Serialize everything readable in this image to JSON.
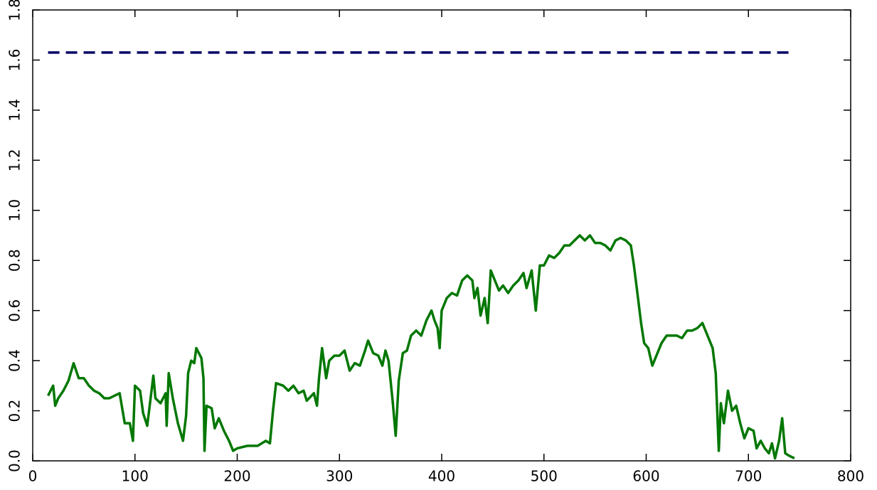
{
  "chart_data": {
    "type": "line",
    "xlim": [
      0,
      800
    ],
    "xticks": [
      0,
      100,
      200,
      300,
      400,
      500,
      600,
      700,
      800
    ],
    "ylim": [
      0,
      1.8
    ],
    "yticks": [
      {
        "value": 0,
        "label": "0.0"
      },
      {
        "value": 0.2,
        "label": "0.2"
      },
      {
        "value": 0.4,
        "label": "0.4"
      },
      {
        "value": 0.6,
        "label": "0.6"
      },
      {
        "value": 0.8,
        "label": "0.8"
      },
      {
        "value": 1.0,
        "label": "1.0"
      },
      {
        "value": 1.2,
        "label": "1.2"
      },
      {
        "value": 1.4,
        "label": "1.4"
      },
      {
        "value": 1.6,
        "label": "1.6"
      },
      {
        "value": 1.8,
        "label": "1.8"
      }
    ],
    "series": [
      {
        "color": "#007700",
        "dash": false,
        "x": [
          15,
          20,
          22,
          25,
          30,
          35,
          40,
          45,
          50,
          55,
          60,
          65,
          70,
          75,
          80,
          85,
          90,
          95,
          98,
          100,
          105,
          108,
          112,
          118,
          120,
          125,
          130,
          131,
          133,
          137,
          142,
          147,
          150,
          152,
          155,
          158,
          160,
          165,
          167,
          168,
          170,
          175,
          178,
          182,
          187,
          192,
          196,
          200,
          210,
          220,
          228,
          232,
          235,
          238,
          245,
          250,
          255,
          260,
          265,
          268,
          275,
          278,
          280,
          283,
          287,
          290,
          295,
          300,
          305,
          310,
          315,
          320,
          325,
          328,
          333,
          338,
          342,
          345,
          348,
          352,
          355,
          358,
          362,
          366,
          370,
          375,
          380,
          385,
          390,
          393,
          396,
          398,
          400,
          405,
          410,
          415,
          420,
          425,
          430,
          432,
          435,
          438,
          442,
          445,
          448,
          452,
          456,
          460,
          465,
          470,
          475,
          480,
          483,
          488,
          492,
          496,
          500,
          505,
          510,
          515,
          520,
          525,
          530,
          535,
          540,
          545,
          550,
          555,
          560,
          565,
          570,
          575,
          580,
          585,
          588,
          592,
          595,
          598,
          602,
          606,
          610,
          615,
          620,
          625,
          630,
          635,
          640,
          645,
          650,
          655,
          660,
          665,
          668,
          671,
          673,
          676,
          680,
          684,
          688,
          692,
          696,
          700,
          705,
          708,
          712,
          716,
          720,
          723,
          726,
          730,
          733,
          736,
          740,
          745
        ],
        "values": [
          0.26,
          0.3,
          0.22,
          0.25,
          0.28,
          0.32,
          0.39,
          0.33,
          0.33,
          0.3,
          0.28,
          0.27,
          0.25,
          0.25,
          0.26,
          0.27,
          0.15,
          0.15,
          0.08,
          0.3,
          0.28,
          0.19,
          0.14,
          0.34,
          0.25,
          0.23,
          0.27,
          0.14,
          0.35,
          0.25,
          0.15,
          0.08,
          0.18,
          0.35,
          0.4,
          0.39,
          0.45,
          0.41,
          0.33,
          0.04,
          0.22,
          0.21,
          0.13,
          0.17,
          0.12,
          0.08,
          0.04,
          0.05,
          0.06,
          0.06,
          0.08,
          0.07,
          0.2,
          0.31,
          0.3,
          0.28,
          0.3,
          0.27,
          0.28,
          0.24,
          0.27,
          0.22,
          0.33,
          0.45,
          0.33,
          0.4,
          0.42,
          0.42,
          0.44,
          0.36,
          0.39,
          0.38,
          0.44,
          0.48,
          0.43,
          0.42,
          0.38,
          0.44,
          0.4,
          0.24,
          0.1,
          0.32,
          0.43,
          0.44,
          0.5,
          0.52,
          0.5,
          0.56,
          0.6,
          0.56,
          0.53,
          0.45,
          0.6,
          0.65,
          0.67,
          0.66,
          0.72,
          0.74,
          0.72,
          0.65,
          0.69,
          0.58,
          0.65,
          0.55,
          0.76,
          0.72,
          0.68,
          0.7,
          0.67,
          0.7,
          0.72,
          0.75,
          0.69,
          0.76,
          0.6,
          0.78,
          0.78,
          0.82,
          0.81,
          0.83,
          0.86,
          0.86,
          0.88,
          0.9,
          0.88,
          0.9,
          0.87,
          0.87,
          0.86,
          0.84,
          0.88,
          0.89,
          0.88,
          0.86,
          0.78,
          0.65,
          0.55,
          0.47,
          0.45,
          0.38,
          0.42,
          0.47,
          0.5,
          0.5,
          0.5,
          0.49,
          0.52,
          0.52,
          0.53,
          0.55,
          0.5,
          0.45,
          0.35,
          0.04,
          0.23,
          0.15,
          0.28,
          0.2,
          0.22,
          0.15,
          0.09,
          0.13,
          0.12,
          0.05,
          0.08,
          0.05,
          0.03,
          0.07,
          0.01,
          0.08,
          0.17,
          0.03,
          0.02,
          0.01
        ]
      },
      {
        "color": "#000066",
        "dash": true,
        "x": [
          15,
          745
        ],
        "values": [
          1.63,
          1.63
        ]
      }
    ]
  }
}
